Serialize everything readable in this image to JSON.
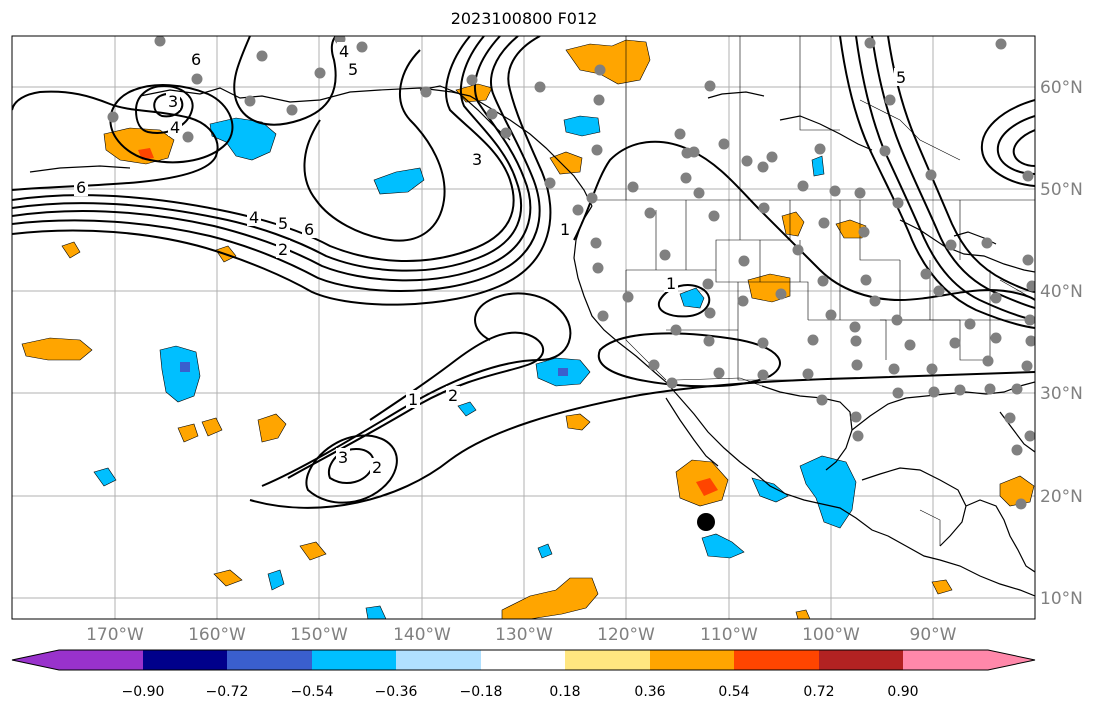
{
  "title": "2023100800 F012",
  "lon_ticks": [
    "170°W",
    "160°W",
    "150°W",
    "140°W",
    "130°W",
    "120°W",
    "110°W",
    "100°W",
    "90°W"
  ],
  "lat_ticks": [
    "60°N",
    "50°N",
    "40°N",
    "30°N",
    "20°N",
    "10°N"
  ],
  "colorbar": {
    "tick_labels": [
      "−0.90",
      "−0.72",
      "−0.54",
      "−0.36",
      "−0.18",
      "0.18",
      "0.36",
      "0.54",
      "0.72",
      "0.90"
    ],
    "colors": [
      "#9932cc",
      "#00008b",
      "#3a5fcd",
      "#00bfff",
      "#b0e0ff",
      "#ffffff",
      "#ffe680",
      "#ffa500",
      "#ff4500",
      "#b22222",
      "#ff88aa"
    ]
  },
  "contour_labels": [
    "1",
    "1",
    "1",
    "2",
    "2",
    "2",
    "3",
    "3",
    "3",
    "4",
    "4",
    "4",
    "5",
    "5",
    "5",
    "6",
    "6",
    "6"
  ],
  "colors": {
    "contour": "#000000",
    "station": "#808080",
    "grid": "#b0b0b0",
    "coast": "#000000",
    "fill_orange": "#ffa500",
    "fill_blue": "#00bfff"
  },
  "marker": "storm-center-marker"
}
